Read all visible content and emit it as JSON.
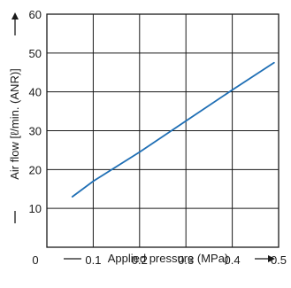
{
  "chart_data": {
    "type": "line",
    "xlabel": "Applied pressure (MPa)",
    "ylabel": "Air flow [ℓ/min. (ANR)]",
    "xlim": [
      0,
      0.5
    ],
    "ylim": [
      0,
      60
    ],
    "x_ticks": [
      "0",
      "0.1",
      "0.2",
      "0.3",
      "0.4",
      "0.5"
    ],
    "y_ticks": [
      "10",
      "20",
      "30",
      "40",
      "50",
      "60"
    ],
    "grid": true,
    "series": [
      {
        "color": "#1f6fb5",
        "x": [
          0.055,
          0.1,
          0.2,
          0.3,
          0.4,
          0.49
        ],
        "y": [
          13,
          17,
          24.5,
          32.5,
          40.5,
          47.5
        ]
      }
    ]
  }
}
